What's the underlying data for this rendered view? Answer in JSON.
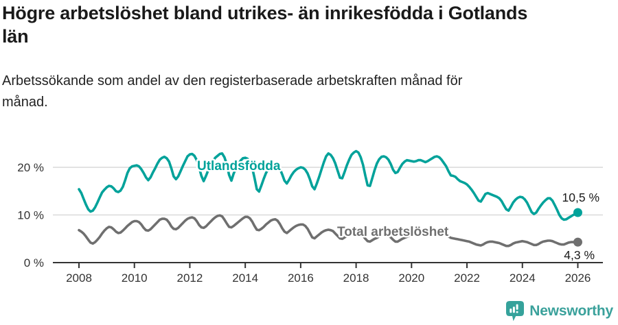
{
  "header": {
    "title_lines": [
      "Högre arbetslöshet bland utrikes- än inrikesfödda i Gotlands",
      "län"
    ],
    "subtitle_lines": [
      "Arbetssökande som andel av den registerbaserade arbetskraften månad för",
      "månad."
    ]
  },
  "footer": {
    "brand": "Newsworthy",
    "logo_icon": "newsworthy-badge-bar-chart-icon",
    "brand_color": "#3aa19b"
  },
  "colors": {
    "series_foreign_born": "#00a29a",
    "series_total": "#6f6f6f",
    "gridline": "#d9d9d9",
    "axis": "#333333",
    "tick_label": "#333333",
    "value_label": "#1a1a1a",
    "background": "#ffffff"
  },
  "chart_data": {
    "type": "line",
    "title": "Högre arbetslöshet bland utrikes- än inrikesfödda i Gotlands län",
    "subtitle": "Arbetssökande som andel av den registerbaserade arbetskraften månad för månad.",
    "x_unit": "time",
    "x_start_year": 2008,
    "x_interval": "monthly",
    "x_end_year": 2026,
    "xlim": [
      2007.1,
      2026.9
    ],
    "ylim": [
      0,
      24.5
    ],
    "grid": "horizontal",
    "legend_position": "inline-labels",
    "x_axis": {
      "ticks": [
        2008,
        2010,
        2012,
        2014,
        2016,
        2018,
        2020,
        2022,
        2024,
        2026
      ]
    },
    "y_axis": {
      "ticks": [
        {
          "value": 0,
          "label": "0 %"
        },
        {
          "value": 10,
          "label": "10 %"
        },
        {
          "value": 20,
          "label": "20 %"
        }
      ]
    },
    "series": [
      {
        "name": "Utlandsfödda",
        "color": "#00a29a",
        "end_label": "10,5 %",
        "last_value": 10.5,
        "values": [
          15.4,
          14.6,
          13.4,
          12.2,
          11.2,
          10.7,
          10.9,
          11.6,
          12.6,
          13.7,
          14.7,
          15.3,
          15.8,
          16.1,
          16.0,
          15.6,
          15.0,
          14.8,
          15.1,
          15.9,
          17.3,
          18.8,
          19.8,
          20.2,
          20.3,
          20.4,
          20.2,
          19.6,
          18.8,
          17.9,
          17.3,
          17.9,
          18.9,
          19.8,
          20.8,
          21.6,
          22.0,
          22.2,
          21.9,
          21.2,
          19.8,
          18.1,
          17.5,
          18.1,
          19.2,
          20.3,
          21.3,
          22.3,
          22.7,
          22.8,
          22.4,
          21.5,
          20.0,
          18.2,
          17.1,
          18.2,
          19.4,
          20.4,
          21.3,
          22.0,
          22.4,
          22.8,
          22.9,
          22.1,
          20.6,
          18.4,
          17.2,
          18.7,
          19.7,
          20.6,
          21.4,
          21.9,
          22.0,
          21.8,
          21.2,
          19.9,
          17.8,
          15.4,
          14.9,
          16.2,
          17.6,
          18.8,
          19.6,
          20.1,
          20.5,
          20.7,
          20.4,
          19.7,
          18.5,
          17.2,
          16.6,
          17.4,
          18.3,
          19.0,
          19.5,
          19.8,
          20.0,
          19.9,
          19.5,
          18.7,
          17.5,
          16.0,
          15.4,
          16.6,
          18.0,
          19.5,
          21.0,
          22.3,
          22.9,
          22.6,
          21.9,
          20.8,
          19.3,
          17.8,
          17.7,
          19.0,
          20.4,
          21.6,
          22.6,
          23.1,
          23.4,
          23.1,
          22.1,
          20.5,
          18.2,
          16.2,
          16.1,
          17.7,
          19.4,
          20.8,
          21.7,
          22.2,
          22.3,
          22.1,
          21.6,
          20.7,
          19.5,
          18.8,
          19.0,
          19.9,
          20.7,
          21.2,
          21.5,
          21.4,
          21.3,
          21.2,
          21.3,
          21.5,
          21.5,
          21.3,
          21.1,
          21.3,
          21.6,
          21.9,
          22.2,
          22.3,
          22.1,
          21.6,
          20.9,
          20.2,
          19.2,
          18.3,
          18.2,
          18.0,
          17.5,
          17.1,
          16.9,
          16.7,
          16.4,
          15.9,
          15.3,
          14.6,
          13.8,
          13.0,
          12.8,
          13.6,
          14.4,
          14.6,
          14.4,
          14.2,
          14.0,
          13.8,
          13.5,
          12.9,
          12.0,
          11.2,
          10.9,
          11.7,
          12.6,
          13.2,
          13.6,
          13.8,
          13.7,
          13.3,
          12.6,
          11.6,
          10.6,
          10.2,
          10.5,
          11.3,
          12.0,
          12.6,
          13.1,
          13.5,
          13.5,
          13.0,
          12.1,
          11.1,
          10.0,
          9.3,
          9.0,
          9.1,
          9.4,
          9.7,
          10.0,
          10.2,
          10.5
        ]
      },
      {
        "name": "Total arbetslöshet",
        "color": "#6f6f6f",
        "end_label": "4,3 %",
        "last_value": 4.3,
        "values": [
          6.8,
          6.5,
          6.1,
          5.5,
          4.8,
          4.2,
          4.0,
          4.3,
          4.8,
          5.4,
          6.1,
          6.7,
          7.2,
          7.5,
          7.4,
          7.0,
          6.5,
          6.2,
          6.3,
          6.7,
          7.2,
          7.7,
          8.1,
          8.5,
          8.7,
          8.7,
          8.5,
          8.0,
          7.3,
          6.8,
          6.7,
          7.0,
          7.5,
          8.0,
          8.5,
          9.0,
          9.2,
          9.2,
          9.0,
          8.4,
          7.6,
          7.1,
          7.0,
          7.3,
          7.8,
          8.3,
          8.8,
          9.2,
          9.4,
          9.5,
          9.3,
          8.7,
          7.9,
          7.4,
          7.3,
          7.6,
          8.1,
          8.6,
          9.1,
          9.5,
          9.8,
          9.9,
          9.7,
          9.0,
          8.2,
          7.5,
          7.4,
          7.7,
          8.1,
          8.5,
          8.9,
          9.3,
          9.6,
          9.6,
          9.3,
          8.6,
          7.7,
          6.9,
          6.8,
          7.1,
          7.5,
          8.0,
          8.4,
          8.8,
          9.0,
          9.1,
          8.8,
          8.1,
          7.2,
          6.5,
          6.2,
          6.6,
          7.0,
          7.4,
          7.7,
          7.9,
          8.0,
          8.0,
          7.7,
          7.1,
          6.2,
          5.3,
          5.1,
          5.5,
          5.9,
          6.3,
          6.6,
          6.8,
          6.9,
          6.8,
          6.6,
          6.1,
          5.6,
          5.1,
          5.0,
          5.3,
          5.6,
          5.9,
          6.1,
          6.3,
          6.4,
          6.3,
          6.1,
          5.6,
          5.0,
          4.5,
          4.4,
          4.7,
          5.0,
          5.2,
          5.5,
          5.7,
          5.9,
          5.9,
          5.7,
          5.3,
          4.8,
          4.4,
          4.4,
          4.7,
          5.0,
          5.2,
          5.4,
          5.6,
          5.8,
          5.9,
          6.1,
          6.3,
          6.3,
          6.2,
          6.1,
          6.2,
          6.3,
          6.4,
          6.5,
          6.5,
          6.4,
          6.3,
          6.1,
          5.8,
          5.5,
          5.2,
          5.1,
          5.0,
          4.9,
          4.8,
          4.7,
          4.6,
          4.5,
          4.4,
          4.2,
          4.0,
          3.8,
          3.7,
          3.6,
          3.8,
          4.1,
          4.3,
          4.4,
          4.4,
          4.3,
          4.2,
          4.1,
          3.9,
          3.7,
          3.5,
          3.5,
          3.7,
          4.0,
          4.2,
          4.3,
          4.4,
          4.5,
          4.4,
          4.3,
          4.1,
          3.9,
          3.7,
          3.7,
          3.9,
          4.2,
          4.4,
          4.5,
          4.6,
          4.6,
          4.5,
          4.3,
          4.1,
          3.9,
          3.8,
          3.8,
          4.0,
          4.2,
          4.3,
          4.3,
          4.3,
          4.3
        ]
      }
    ]
  }
}
